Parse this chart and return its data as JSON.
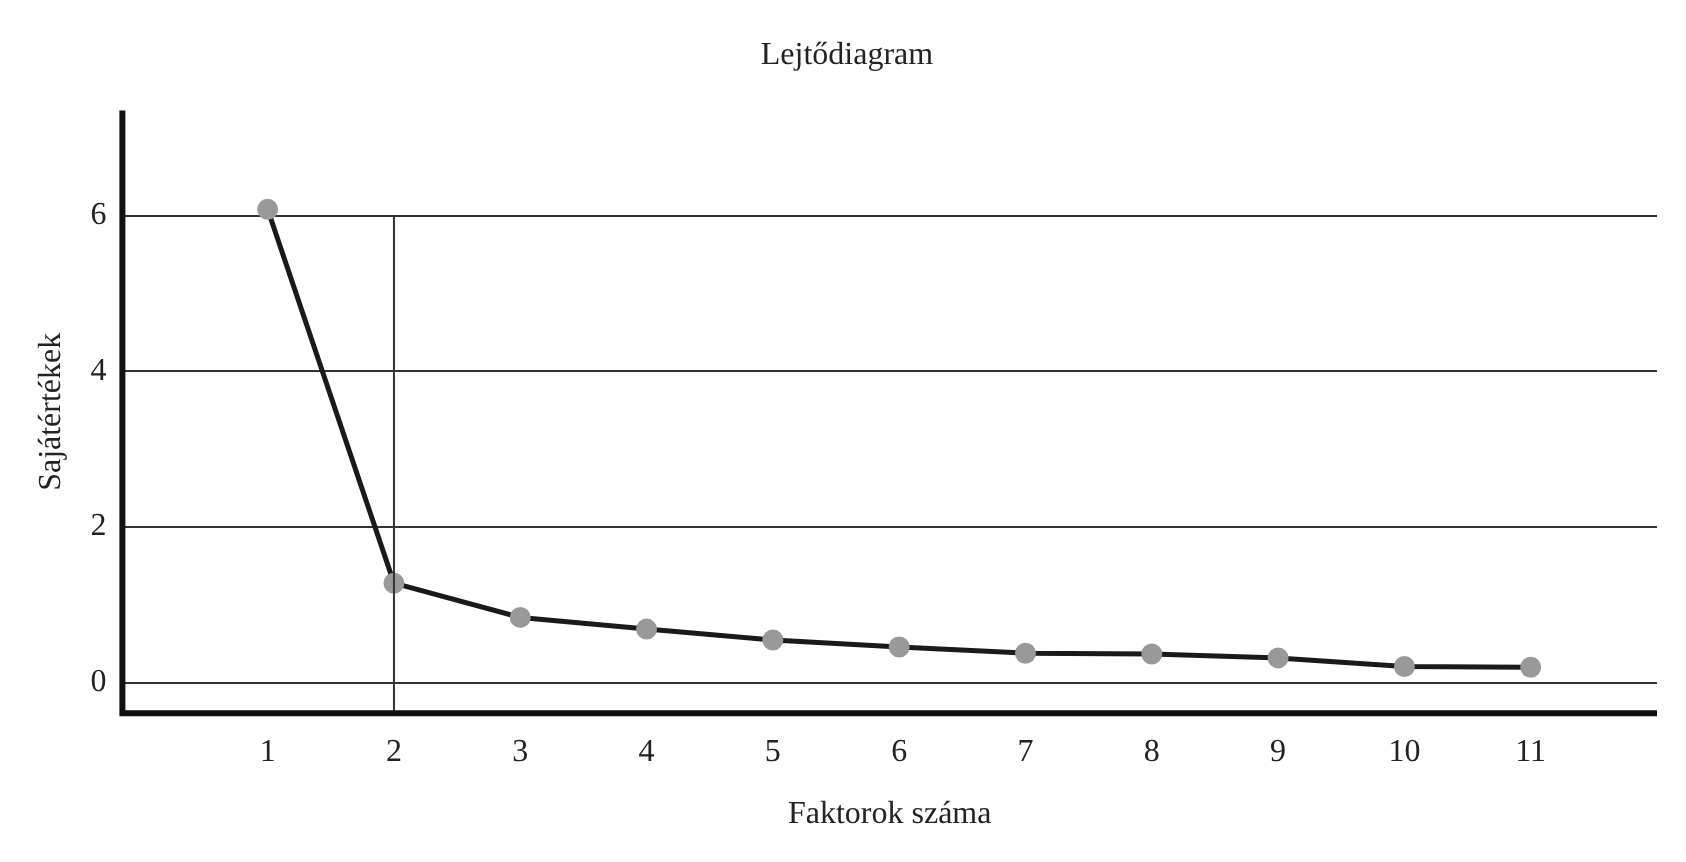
{
  "chart_data": {
    "type": "line",
    "title": "Lejtődiagram",
    "xlabel": "Faktorok száma",
    "ylabel": "Sajátértékek",
    "x": [
      1,
      2,
      3,
      4,
      5,
      6,
      7,
      8,
      9,
      10,
      11
    ],
    "series": [
      {
        "color": "#1a1a1a",
        "values": [
          6.08,
          1.28,
          0.84,
          0.69,
          0.55,
          0.46,
          0.38,
          0.37,
          0.32,
          0.21,
          0.2
        ]
      }
    ],
    "xlim": [
      -0.15,
      12
    ],
    "xticks": [
      1,
      2,
      3,
      4,
      5,
      6,
      7,
      8,
      9,
      10,
      11
    ],
    "ylim": [
      -0.39,
      7.35
    ],
    "yticks": [
      0,
      2,
      4,
      6
    ],
    "ref_lines": [
      {
        "axis": "x",
        "value": 2
      }
    ],
    "grid": "y",
    "legend": false,
    "marker": "circle",
    "line_style": "solid"
  }
}
